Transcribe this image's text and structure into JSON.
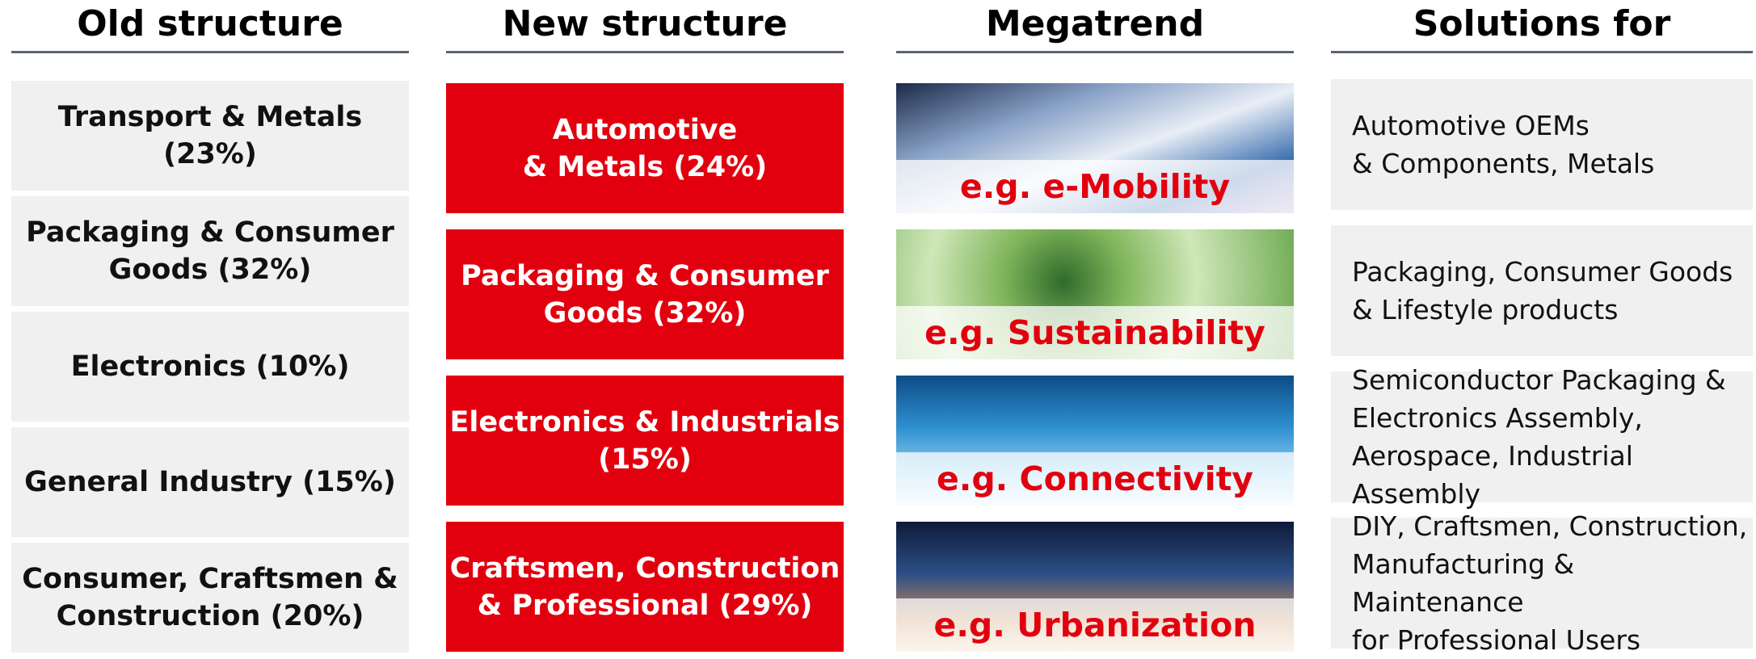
{
  "headers": [
    "Old structure",
    "New structure",
    "Megatrend",
    "Solutions for"
  ],
  "old_structure": [
    {
      "lines": [
        "Transport & Metals",
        "(23%)"
      ]
    },
    {
      "lines": [
        "Packaging & Consumer",
        "Goods (32%)"
      ]
    },
    {
      "lines": [
        "Electronics (10%)"
      ]
    },
    {
      "lines": [
        "General Industry (15%)"
      ]
    },
    {
      "lines": [
        "Consumer, Craftsmen &",
        "Construction (20%)"
      ]
    }
  ],
  "new_structure": [
    {
      "lines": [
        "Automotive",
        "& Metals (24%)"
      ]
    },
    {
      "lines": [
        "Packaging & Consumer",
        "Goods (32%)"
      ]
    },
    {
      "lines": [
        "Electronics & Industrials",
        "(15%)"
      ]
    },
    {
      "lines": [
        "Craftsmen, Construction",
        "& Professional (29%)"
      ]
    }
  ],
  "megatrends": [
    "e.g. e-Mobility",
    "e.g. Sustainability",
    "e.g. Connectivity",
    "e.g. Urbanization"
  ],
  "solutions": [
    {
      "lines": [
        "Automotive OEMs",
        "& Components, Metals"
      ]
    },
    {
      "lines": [
        "Packaging, Consumer Goods",
        "& Lifestyle products"
      ]
    },
    {
      "lines": [
        "Semiconductor Packaging &",
        "Electronics Assembly,",
        "Aerospace, Industrial Assembly"
      ]
    },
    {
      "lines": [
        "DIY, Craftsmen, Construction,",
        "Manufacturing & Maintenance",
        "for Professional Users"
      ]
    }
  ]
}
